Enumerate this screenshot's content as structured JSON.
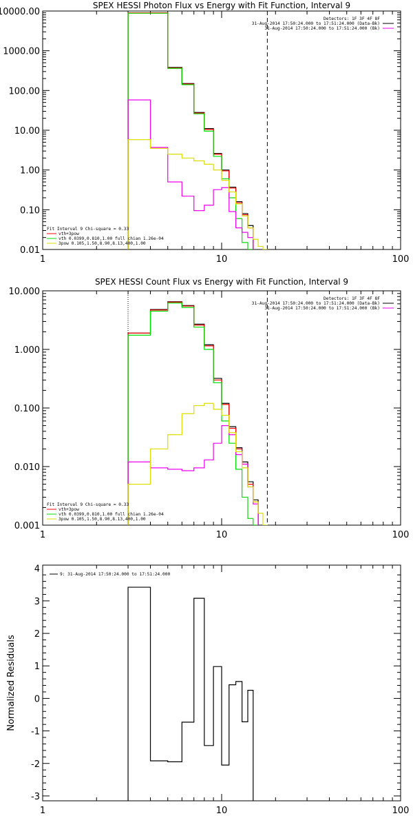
{
  "chart_data": [
    {
      "type": "line",
      "title": "SPEX HESSI Photon Flux vs Energy with Fit Function, Interval 9",
      "xlabel": "",
      "ylabel": "",
      "xscale": "log",
      "yscale": "log",
      "xlim": [
        1,
        100
      ],
      "ylim": [
        0.01,
        10000
      ],
      "xticks": [
        "1",
        "10",
        "100"
      ],
      "yticks": [
        "10000.00",
        "1000.00",
        "100.00",
        "10.00",
        "1.00",
        "0.10",
        "0.01"
      ],
      "yticks_values": [
        10000,
        1000,
        100,
        10,
        1,
        0.1,
        0.01
      ],
      "vlines": [
        {
          "x": 3.0,
          "style": "dotted",
          "color": "#000000"
        },
        {
          "x": 18.0,
          "style": "dashed",
          "color": "#000000"
        }
      ],
      "header_lines": [
        "Detectors: 1F 3F 4F 8F",
        "31-Aug-2014 17:50:24.000 to 17:51:24.000 (Data-Bk)",
        "31-Aug-2014 17:50:24.000 to 17:51:24.000 (Bk)"
      ],
      "legend_title": "Fit Interval 9   Chi-square = 0.33",
      "legend_lines": [
        "vth+3pow",
        "vth 0.0399,0.810,1.00  full chian 1.26e-04",
        "3pow 0.105,1.50,8.90,8.13,400,1.00"
      ],
      "colors": {
        "data": "#000000",
        "total": "#ff0000",
        "vth": "#00dd00",
        "pow": "#ee00ee",
        "thick": "#dddd00"
      },
      "bin_edges": [
        3,
        4,
        5,
        6,
        7,
        8,
        9,
        10,
        11,
        12,
        13,
        14,
        15,
        16,
        17,
        18,
        19,
        20
      ],
      "series": [
        {
          "name": "",
          "color": "#000000",
          "values": [
            9000,
            9000,
            380,
            150,
            28,
            11,
            2.6,
            1.0,
            0.37,
            0.16,
            0.08,
            0.04,
            null,
            null,
            null,
            null,
            null
          ]
        },
        {
          "name": "vth+3pow",
          "color": "#ff0000",
          "values": [
            9000,
            9000,
            370,
            145,
            27,
            10.5,
            2.5,
            0.95,
            0.35,
            0.15,
            0.075,
            0.035,
            null,
            null,
            null,
            null,
            null
          ]
        },
        {
          "name": "vth 0.0399,0.810,1.00  full chian 1.26e-04",
          "color": "#00dd00",
          "values": [
            8800,
            8800,
            360,
            140,
            26,
            9.5,
            2.2,
            0.6,
            0.2,
            0.06,
            0.015,
            0.01,
            null,
            null,
            null,
            null,
            null
          ]
        },
        {
          "name": "3pow 0.105,1.50,8.90,8.13,400,1.00",
          "color": "#ee00ee",
          "values": [
            58,
            3.7,
            0.5,
            0.22,
            0.095,
            0.13,
            0.32,
            0.36,
            0.09,
            0.035,
            0.027,
            0.02,
            null,
            null,
            null,
            null,
            null
          ]
        },
        {
          "name": "",
          "color": "#dddd00",
          "values": [
            5.8,
            3.5,
            2.5,
            2.0,
            1.7,
            1.4,
            1.0,
            0.55,
            0.28,
            0.14,
            0.07,
            0.035,
            0.018,
            0.012,
            0.01,
            null,
            null
          ]
        }
      ]
    },
    {
      "type": "line",
      "title": "SPEX HESSI Count Flux vs Energy with Fit Function, Interval 9",
      "xlabel": "",
      "ylabel": "",
      "xscale": "log",
      "yscale": "log",
      "xlim": [
        1,
        100
      ],
      "ylim": [
        0.001,
        10
      ],
      "xticks": [
        "1",
        "10",
        "100"
      ],
      "yticks": [
        "10.000",
        "1.000",
        "0.100",
        "0.010",
        "0.001"
      ],
      "yticks_values": [
        10,
        1,
        0.1,
        0.01,
        0.001
      ],
      "vlines": [
        {
          "x": 3.0,
          "style": "dotted",
          "color": "#000000"
        },
        {
          "x": 18.0,
          "style": "dashed",
          "color": "#000000"
        }
      ],
      "header_lines": [
        "Detectors: 1F 3F 4F 8F",
        "31-Aug-2014 17:50:24.000 to 17:51:24.000 (Data-Bk)",
        "31-Aug-2014 17:50:24.000 to 17:51:24.000 (Bk)"
      ],
      "legend_title": "Fit Interval 9   Chi-square = 0.33",
      "legend_lines": [
        "vth+3pow",
        "vth 0.0399,0.810,1.00  full chian 1.26e-04",
        "3pow 0.105,1.50,8.90,8.13,400,1.00"
      ],
      "colors": {
        "data": "#000000",
        "total": "#ff0000",
        "vth": "#00dd00",
        "pow": "#ee00ee",
        "thick": "#dddd00"
      },
      "bin_edges": [
        3,
        4,
        5,
        6,
        7,
        8,
        9,
        10,
        11,
        12,
        13,
        14,
        15,
        16,
        17,
        18,
        19,
        20
      ],
      "series": [
        {
          "name": "",
          "color": "#000000",
          "values": [
            1.9,
            4.8,
            6.5,
            5.6,
            2.7,
            1.2,
            0.32,
            0.12,
            0.048,
            0.021,
            0.012,
            0.0055,
            0.0027,
            null,
            null,
            null,
            null
          ]
        },
        {
          "name": "vth+3pow",
          "color": "#ff0000",
          "values": [
            1.9,
            4.7,
            6.4,
            5.5,
            2.6,
            1.15,
            0.3,
            0.115,
            0.045,
            0.02,
            0.011,
            0.005,
            0.0025,
            null,
            null,
            null,
            null
          ]
        },
        {
          "name": "vth 0.0399,0.810,1.00  full chian 1.26e-04",
          "color": "#00dd00",
          "values": [
            1.75,
            4.5,
            6.2,
            5.2,
            2.4,
            1.0,
            0.27,
            0.06,
            0.025,
            0.009,
            0.003,
            0.0013,
            0.001,
            null,
            null,
            null,
            null
          ]
        },
        {
          "name": "3pow 0.105,1.50,8.90,8.13,400,1.00",
          "color": "#ee00ee",
          "values": [
            0.012,
            0.0095,
            0.009,
            0.0085,
            0.0095,
            0.013,
            0.025,
            0.05,
            0.035,
            0.016,
            0.011,
            0.0045,
            0.0023,
            null,
            null,
            null,
            null
          ]
        },
        {
          "name": "",
          "color": "#dddd00",
          "values": [
            0.005,
            0.02,
            0.035,
            0.08,
            0.11,
            0.12,
            0.095,
            0.075,
            0.038,
            0.018,
            0.0095,
            0.0045,
            0.0025,
            0.0016,
            0.001,
            null,
            null
          ]
        }
      ]
    },
    {
      "type": "line",
      "title": "",
      "xlabel": "",
      "ylabel": "Normalized Residuals",
      "xscale": "log",
      "yscale": "linear",
      "xlim": [
        1,
        100
      ],
      "ylim": [
        -3.15,
        4.1
      ],
      "xticks": [
        "1",
        "10",
        "100"
      ],
      "yticks": [
        "4",
        "3",
        "2",
        "1",
        "0",
        "-1",
        "-2",
        "-3"
      ],
      "yticks_values": [
        4,
        3,
        2,
        1,
        0,
        -1,
        -2,
        -3
      ],
      "legend_lines": [
        "9: 31-Aug-2014 17:50:24.000 to 17:51:24.000"
      ],
      "bin_edges": [
        3,
        4,
        5,
        6,
        7,
        8,
        9,
        10,
        11,
        12,
        13,
        14,
        15,
        16,
        17,
        18
      ],
      "series": [
        {
          "name": "9: 31-Aug-2014 17:50:24.000 to 17:51:24.000",
          "color": "#000000",
          "values": [
            3.42,
            -1.92,
            -1.95,
            -0.73,
            3.08,
            -1.45,
            0.98,
            -2.05,
            0.42,
            0.52,
            -0.72,
            0.25
          ]
        }
      ]
    }
  ]
}
